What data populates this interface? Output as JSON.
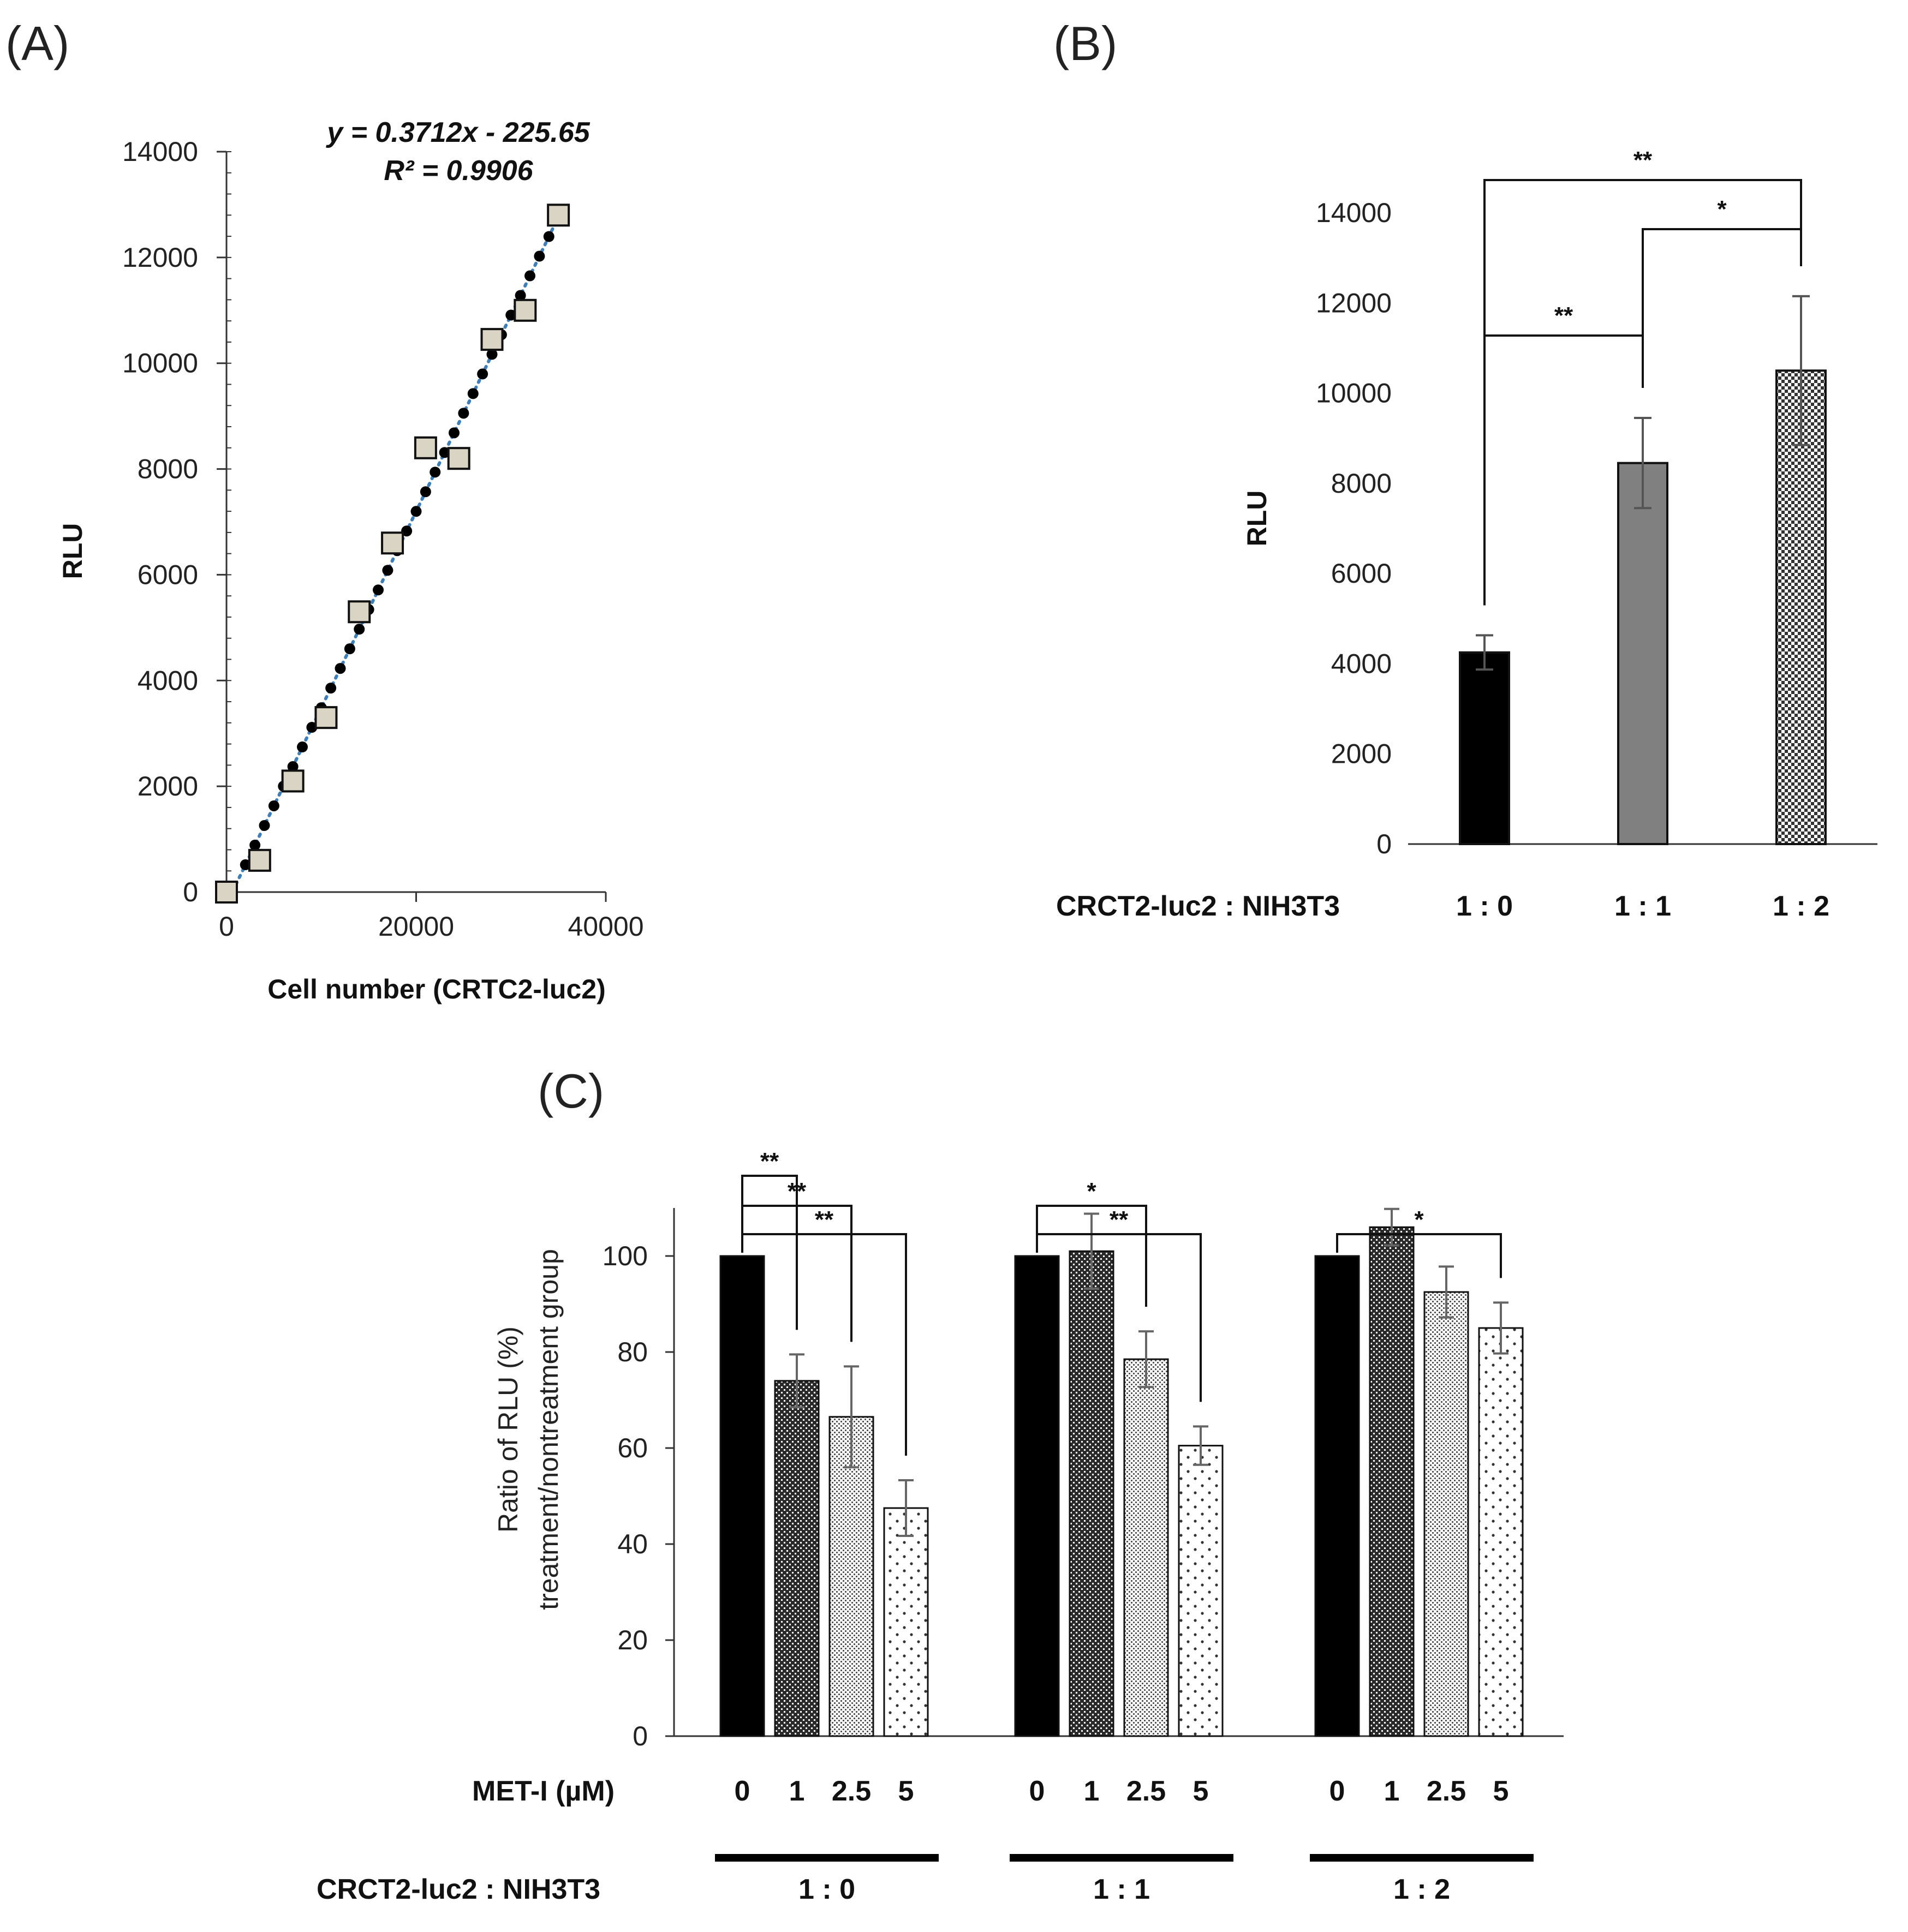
{
  "panel_labels": [
    "(A)",
    "(B)",
    "(C)"
  ],
  "chart_data": [
    {
      "type": "scatter",
      "panel": "(A)",
      "xlabel": "Cell number (CRTC2-luc2)",
      "ylabel": "RLU",
      "xlim": [
        0,
        40000
      ],
      "ylim": [
        0,
        14000
      ],
      "x_ticks": [
        "0",
        "20000",
        "40000"
      ],
      "y_ticks": [
        "0",
        "2000",
        "4000",
        "6000",
        "8000",
        "10000",
        "12000",
        "14000"
      ],
      "equation": "y = 0.3712x - 225.65",
      "r_squared": "R² = 0.9906",
      "trendline": {
        "slope": 0.3712,
        "intercept": -225.65,
        "x_range": [
          0,
          35000
        ],
        "color": "#3b7fbf"
      },
      "points": [
        {
          "x": 0,
          "y": 0
        },
        {
          "x": 3500,
          "y": 600
        },
        {
          "x": 7000,
          "y": 2100
        },
        {
          "x": 10500,
          "y": 3300
        },
        {
          "x": 14000,
          "y": 5300
        },
        {
          "x": 17500,
          "y": 6600
        },
        {
          "x": 21000,
          "y": 8400
        },
        {
          "x": 24500,
          "y": 8200
        },
        {
          "x": 28000,
          "y": 10450
        },
        {
          "x": 31500,
          "y": 11000
        },
        {
          "x": 35000,
          "y": 12800
        }
      ],
      "marker_color": "#d9d4c3"
    },
    {
      "type": "bar",
      "panel": "(B)",
      "ylabel": "RLU",
      "ylim": [
        0,
        14000
      ],
      "y_ticks": [
        "0",
        "2000",
        "4000",
        "6000",
        "8000",
        "10000",
        "12000",
        "14000"
      ],
      "category_title": "CRCT2-luc2 : NIH3T3",
      "categories": [
        "1 : 0",
        "1 : 1",
        "1 : 2"
      ],
      "values": [
        4250,
        8450,
        10500
      ],
      "errors": [
        380,
        1000,
        1650
      ],
      "fills": [
        "#000000",
        "#808080",
        "checker"
      ],
      "significance": [
        {
          "from": 0,
          "to": 1,
          "label": "**"
        },
        {
          "from": 1,
          "to": 2,
          "label": "*"
        },
        {
          "from": 0,
          "to": 2,
          "label": "**"
        }
      ]
    },
    {
      "type": "bar",
      "panel": "(C)",
      "ylabel": "Ratio of RLU (%)",
      "ylabel2": "treatment/nontreatment group",
      "ylim": [
        0,
        110
      ],
      "y_ticks": [
        "0",
        "20",
        "40",
        "60",
        "80",
        "100"
      ],
      "dose_title": "MET-I (µM)",
      "doses": [
        "0",
        "1",
        "2.5",
        "5"
      ],
      "group_title": "CRCT2-luc2 : NIH3T3",
      "groups": [
        {
          "label": "1 : 0",
          "values": [
            100,
            74,
            66.5,
            47.5
          ],
          "errors": [
            0,
            5.5,
            10.5,
            5.8
          ],
          "significance": [
            {
              "to": 1,
              "label": "**"
            },
            {
              "to": 2,
              "label": "**"
            },
            {
              "to": 3,
              "label": "**"
            }
          ]
        },
        {
          "label": "1 : 1",
          "values": [
            100,
            101,
            78.5,
            60.5
          ],
          "errors": [
            0,
            7.8,
            5.8,
            4.0
          ],
          "significance": [
            {
              "to": 2,
              "label": "*"
            },
            {
              "to": 3,
              "label": "**"
            }
          ]
        },
        {
          "label": "1 : 2",
          "values": [
            100,
            106,
            92.5,
            85
          ],
          "errors": [
            0,
            3.8,
            5.3,
            5.3
          ],
          "significance": [
            {
              "to": 3,
              "label": "*"
            }
          ]
        }
      ],
      "dose_fills": [
        "#000000",
        "dense",
        "fine",
        "sparse"
      ]
    }
  ]
}
